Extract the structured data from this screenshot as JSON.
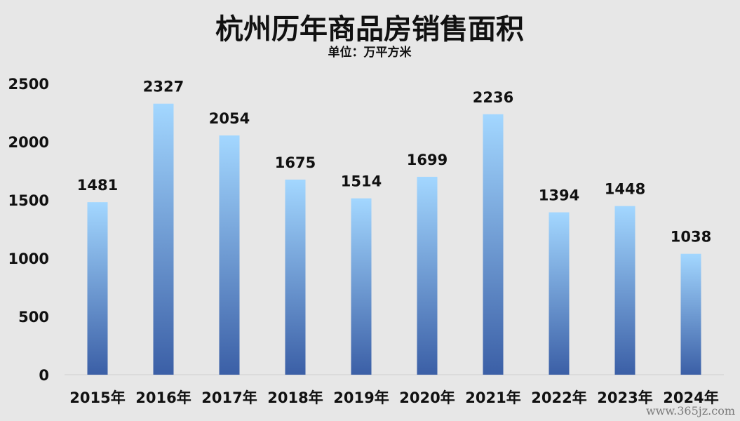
{
  "chart_data": {
    "type": "bar",
    "title": "杭州历年商品房销售面积",
    "subtitle": "单位：万平方米",
    "categories": [
      "2015年",
      "2016年",
      "2017年",
      "2018年",
      "2019年",
      "2020年",
      "2021年",
      "2022年",
      "2023年",
      "2024年"
    ],
    "values": [
      1481,
      2327,
      2054,
      1675,
      1514,
      1699,
      2236,
      1394,
      1448,
      1038
    ],
    "data_labels": [
      "1481",
      "2327",
      "2054",
      "1675",
      "1514",
      "1699",
      "2236",
      "1394",
      "1448",
      "1038"
    ],
    "yticks": [
      "0",
      "500",
      "1000",
      "1500",
      "2000",
      "2500"
    ],
    "ylim": [
      0,
      2500
    ],
    "grid": false,
    "legend": "none",
    "colors": {
      "bar_top": "#a3d7ff",
      "bar_bottom": "#3b5fa6",
      "background": "#e7e7e7"
    }
  },
  "watermark": "www.365jz.com"
}
